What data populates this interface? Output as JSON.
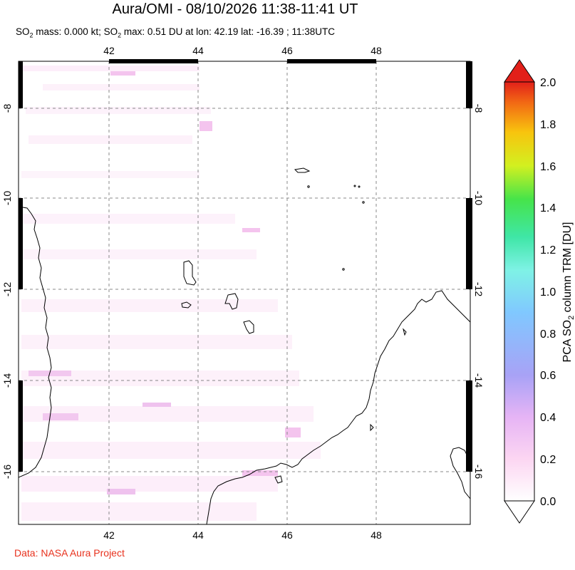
{
  "title": "Aura/OMI - 08/10/2026 11:38-11:41 UT",
  "subtitle": {
    "so2_label": "SO",
    "so2_sub": "2",
    "mass_text": " mass: 0.000 kt; SO",
    "max_sub": "2",
    "max_text": " max: 0.51 DU at lon: 42.19 lat: -16.39 ; 11:38UTC"
  },
  "credit": "Data: NASA Aura Project",
  "map": {
    "lon_ticks": [
      "42",
      "44",
      "46",
      "48"
    ],
    "lat_ticks": [
      "-8",
      "-10",
      "-12",
      "-14",
      "-16"
    ]
  },
  "colorbar": {
    "ticks": [
      "0.0",
      "0.2",
      "0.4",
      "0.6",
      "0.8",
      "1.0",
      "1.2",
      "1.4",
      "1.6",
      "1.8",
      "2.0"
    ],
    "label_prefix": "PCA SO",
    "label_sub": "2",
    "label_suffix": " column TRM [DU]",
    "colors": [
      "#ffffff",
      "#fcd6f2",
      "#e6b4f5",
      "#a8a2f6",
      "#80c8ff",
      "#7ff2e6",
      "#3fe6a6",
      "#46e44a",
      "#d2f020",
      "#f8c40e",
      "#f26a14",
      "#e2201a"
    ]
  }
}
